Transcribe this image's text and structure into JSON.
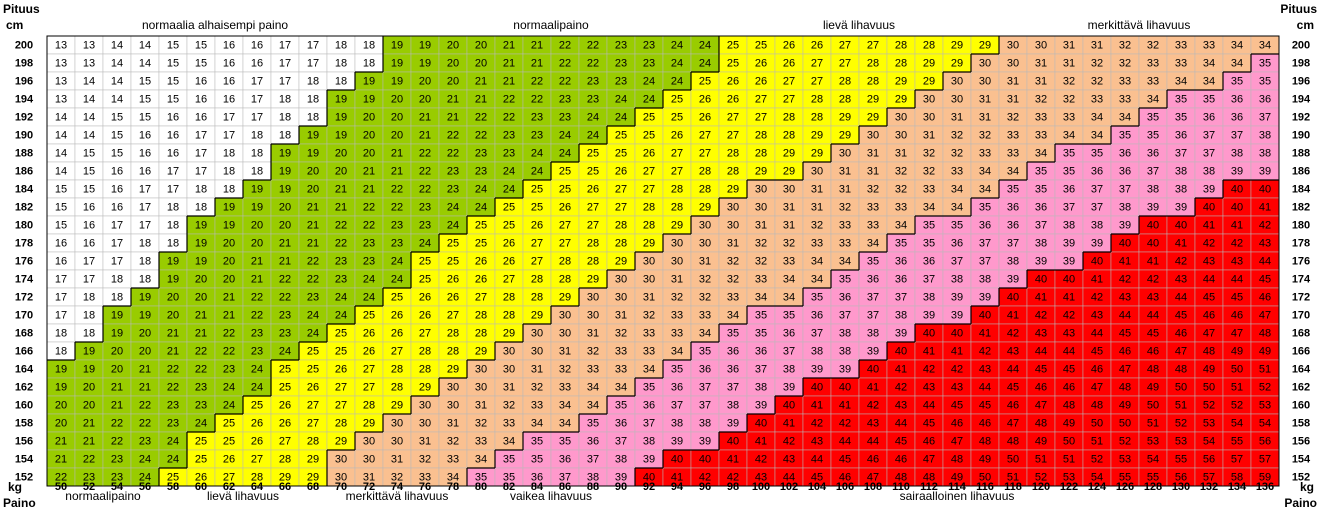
{
  "chart_data": {
    "type": "heatmap",
    "corner_labels": {
      "left_top": [
        "Pituus",
        "cm"
      ],
      "right_top": [
        "Pituus",
        "cm"
      ],
      "left_bottom": [
        "kg",
        "Paino"
      ],
      "right_bottom": [
        "kg",
        "Paino"
      ]
    },
    "heights_cm": [
      200,
      198,
      196,
      194,
      192,
      190,
      188,
      186,
      184,
      182,
      180,
      178,
      176,
      174,
      172,
      170,
      168,
      166,
      164,
      162,
      160,
      158,
      156,
      154,
      152
    ],
    "weights_kg": [
      50,
      52,
      54,
      56,
      58,
      60,
      62,
      64,
      66,
      68,
      70,
      72,
      74,
      76,
      78,
      80,
      82,
      84,
      86,
      88,
      90,
      92,
      94,
      96,
      98,
      100,
      102,
      104,
      106,
      108,
      110,
      112,
      114,
      116,
      118,
      120,
      122,
      124,
      126,
      128,
      130,
      132,
      134,
      136
    ],
    "value_rule": "cell value = round(weight_kg / (height_m * height_m))",
    "top_bands": [
      "normaalia alhaisempi paino",
      "normaalipaino",
      "lievä lihavuus",
      "merkittävä lihavuus"
    ],
    "bottom_bands": [
      "normaalipaino",
      "lievä lihavuus",
      "merkittävä lihavuus",
      "vaikea lihavuus",
      "sairaalloinen lihavuus"
    ],
    "categories": [
      {
        "min": 0,
        "max": 18.5,
        "color": "#ffffff"
      },
      {
        "min": 18.5,
        "max": 24.5,
        "color": "#99cc00"
      },
      {
        "min": 24.5,
        "max": 29.5,
        "color": "#ffff00"
      },
      {
        "min": 29.5,
        "max": 34.5,
        "color": "#fac090"
      },
      {
        "min": 34.5,
        "max": 39.5,
        "color": "#ff99cc"
      },
      {
        "min": 39.5,
        "max": 999,
        "color": "#ff0000"
      }
    ]
  }
}
